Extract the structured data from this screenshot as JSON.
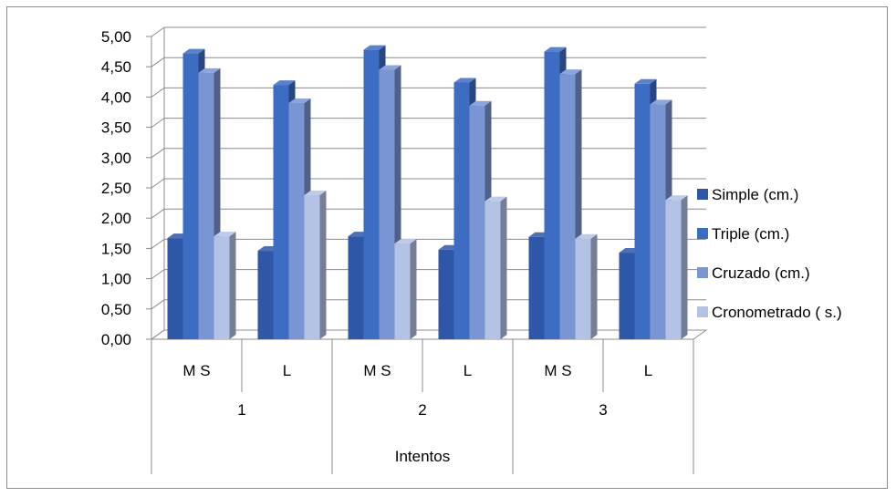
{
  "chart_data": {
    "type": "bar",
    "title": "",
    "xlabel": "Intentos",
    "ylabel": "",
    "ylim": [
      0,
      5
    ],
    "yticks": [
      "0,00",
      "0,50",
      "1,00",
      "1,50",
      "2,00",
      "2,50",
      "3,00",
      "3,50",
      "4,00",
      "4,50",
      "5,00"
    ],
    "groups": [
      "1",
      "2",
      "3"
    ],
    "categories": [
      "M S",
      "L",
      "M S",
      "L",
      "M S",
      "L"
    ],
    "series": [
      {
        "name": "Simple (cm.)",
        "values": [
          1.67,
          1.46,
          1.7,
          1.48,
          1.69,
          1.43
        ]
      },
      {
        "name": "Triple (cm.)",
        "values": [
          4.72,
          4.2,
          4.78,
          4.24,
          4.75,
          4.22
        ]
      },
      {
        "name": "Cruzado (cm.)",
        "values": [
          4.4,
          3.9,
          4.45,
          3.86,
          4.38,
          3.88
        ]
      },
      {
        "name": "Cronometrado ( s.)",
        "values": [
          1.7,
          2.38,
          1.58,
          2.28,
          1.66,
          2.3
        ]
      }
    ],
    "colors": [
      "#2E58A7",
      "#3D6CC3",
      "#7A95D3",
      "#B3C2E5"
    ],
    "grid": true,
    "legend_position": "right",
    "style": "3d-clustered-column"
  }
}
